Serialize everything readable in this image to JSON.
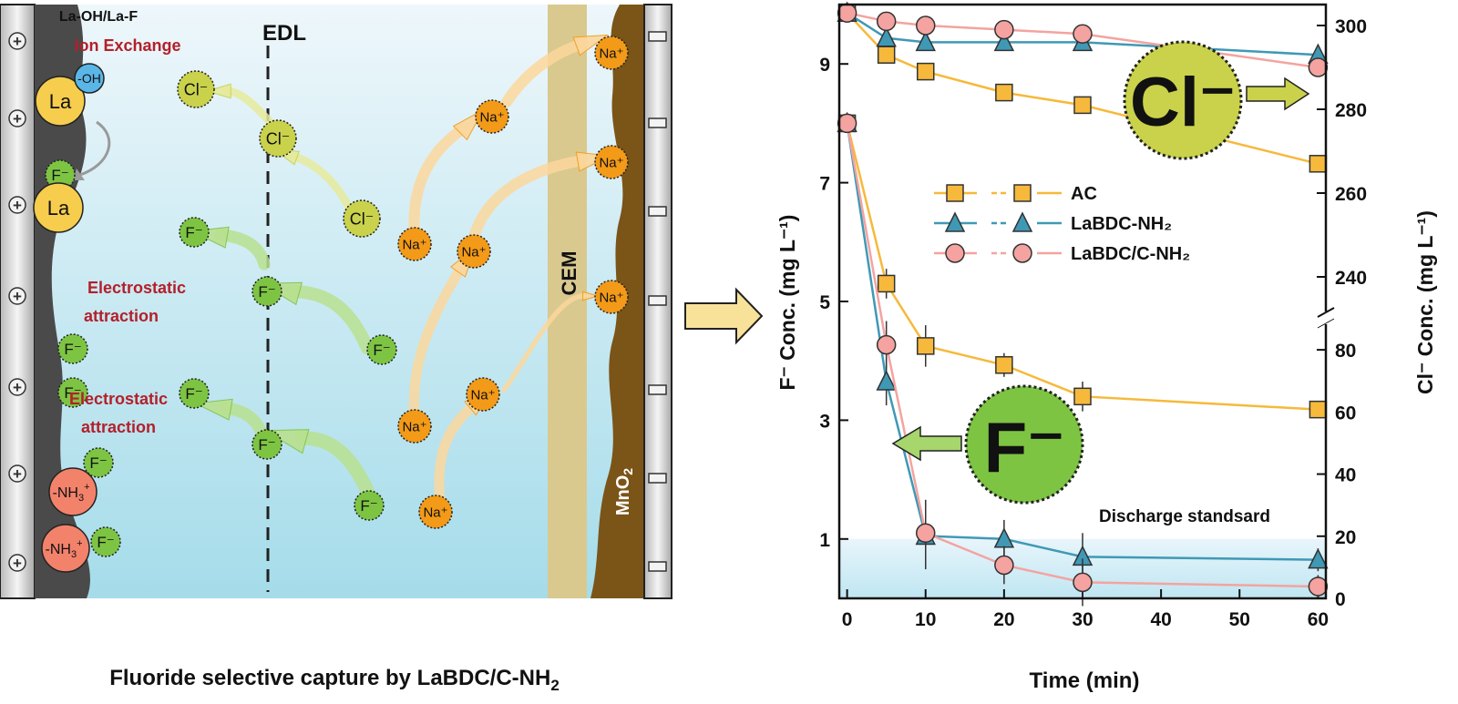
{
  "schematic": {
    "title_main": "Fluoride selective capture by LaBDC/C-NH",
    "title_sub": "2",
    "la_label": "La-OH/La-F",
    "ion_exchange": "Ion Exchange",
    "edl": "EDL",
    "electrostatic_line1": "Electrostatic",
    "electrostatic_line2": "attraction",
    "cem": "CEM",
    "mno2_main": "MnO",
    "mno2_sub": "2",
    "la": "La",
    "oh": "-OH",
    "f_ion": "F⁻",
    "cl_ion": "Cl⁻",
    "na_ion": "Na⁺",
    "nh3_prefix": "-NH",
    "nh3_sub": "3",
    "nh3_sup": "+",
    "plus_sign": "+",
    "minus_sign": "−",
    "colors": {
      "f_green": "#7dc443",
      "cl_yellow": "#c9d24a",
      "na_orange": "#f39a18",
      "la_yellow": "#f6cd4d",
      "oh_blue": "#5ab6e6",
      "nh3_salmon": "#f3826b",
      "electrode_dark": "#4a4a4a",
      "mno2_brown": "#7b5418",
      "cem_tan": "#d9c98e"
    }
  },
  "chart_data": {
    "type": "line",
    "x": [
      0,
      5,
      10,
      20,
      30,
      60
    ],
    "xlabel": "Time (min)",
    "ylabel_left": "F⁻ Conc. (mg L⁻¹)",
    "ylabel_right": "Cl⁻ Conc. (mg L⁻¹)",
    "xticks": [
      0,
      10,
      20,
      30,
      40,
      50,
      60
    ],
    "left_yticks": [
      1,
      3,
      5,
      7,
      9
    ],
    "left_ylim": [
      0,
      10
    ],
    "right_yticks_lower": [
      0,
      20,
      40,
      60,
      80
    ],
    "right_yticks_upper": [
      240,
      260,
      280,
      300
    ],
    "right_ylim_lower": [
      0,
      90
    ],
    "right_ylim_upper": [
      230,
      305
    ],
    "discharge_standard": {
      "label": "Discharge standsard",
      "value": 1.0
    },
    "big_labels": {
      "cl": "Cl⁻",
      "f": "F⁻"
    },
    "series_f": [
      {
        "name": "AC",
        "marker": "square",
        "color": "#f6b93b",
        "values": [
          8.0,
          5.3,
          4.25,
          3.93,
          3.4,
          3.18
        ]
      },
      {
        "name": "LaBDC-NH₂",
        "marker": "triangle",
        "color": "#3f99b5",
        "values": [
          8.0,
          3.65,
          1.05,
          1.0,
          0.7,
          0.65
        ]
      },
      {
        "name": "LaBDC/C-NH₂",
        "marker": "circle",
        "color": "#f4a3a0",
        "values": [
          8.0,
          4.27,
          1.1,
          0.56,
          0.27,
          0.2
        ]
      }
    ],
    "series_cl": [
      {
        "name": "AC",
        "values": [
          303,
          293,
          289,
          284,
          281,
          267
        ]
      },
      {
        "name": "LaBDC-NH₂",
        "values": [
          303,
          297,
          296,
          296,
          296,
          293
        ]
      },
      {
        "name": "LaBDC/C-NH₂",
        "values": [
          303,
          301,
          300,
          299,
          298,
          290
        ]
      }
    ]
  }
}
